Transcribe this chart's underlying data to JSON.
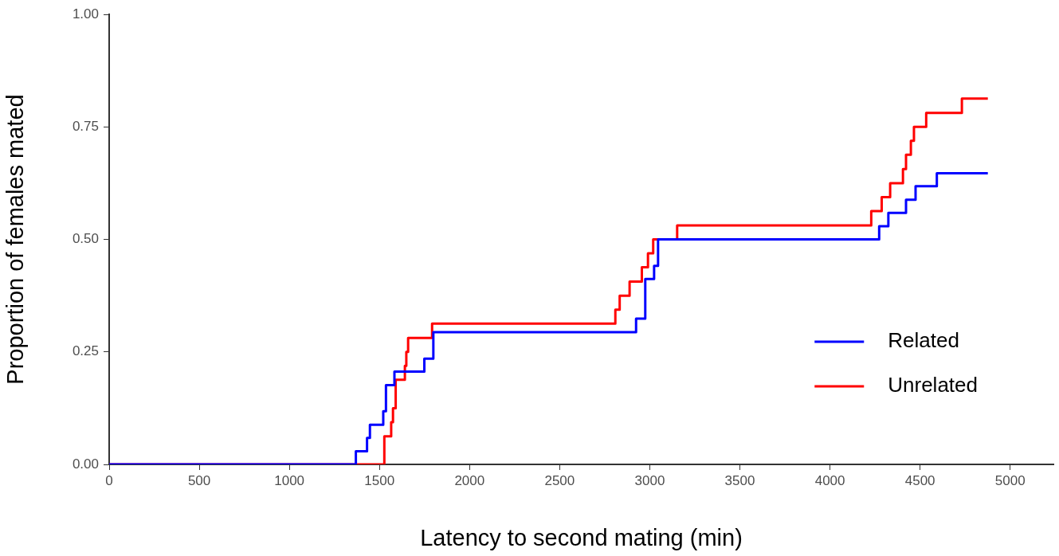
{
  "chart_data": {
    "type": "step",
    "xlabel": "Latency to second mating (min)",
    "ylabel": "Proportion of females mated",
    "xlim": [
      0,
      5240
    ],
    "xticks": [
      0,
      500,
      1000,
      1500,
      2000,
      2500,
      3000,
      3500,
      4000,
      4500,
      5000
    ],
    "ylim": [
      0,
      1
    ],
    "yticks": [
      {
        "value": 0,
        "label": "0.00"
      },
      {
        "value": 0.25,
        "label": "0.25"
      },
      {
        "value": 0.5,
        "label": "0.50"
      },
      {
        "value": 0.75,
        "label": "0.75"
      },
      {
        "value": 1,
        "label": "1.00"
      }
    ],
    "grid": false,
    "legend": "bottom right",
    "marker": "none",
    "line_style": "solid",
    "series": [
      {
        "name": "Related",
        "color": "#0000ff",
        "x": [
          0,
          1369,
          1431,
          1447,
          1521,
          1536,
          1583,
          1749,
          1799,
          2924,
          2975,
          3024,
          3046,
          4273,
          4324,
          4422,
          4475,
          4593,
          4876
        ],
        "values": [
          0,
          0.029,
          0.059,
          0.088,
          0.118,
          0.176,
          0.206,
          0.235,
          0.294,
          0.324,
          0.412,
          0.441,
          0.5,
          0.529,
          0.559,
          0.588,
          0.618,
          0.647,
          0.647
        ]
      },
      {
        "name": "Unrelated",
        "color": "#ff0000",
        "x": [
          0,
          1527,
          1565,
          1575,
          1590,
          1641,
          1649,
          1659,
          1792,
          2809,
          2833,
          2888,
          2956,
          2990,
          3019,
          3152,
          4229,
          4287,
          4334,
          4405,
          4422,
          4449,
          4466,
          4534,
          4732,
          4876
        ],
        "values": [
          0,
          0.0625,
          0.094,
          0.125,
          0.188,
          0.219,
          0.25,
          0.281,
          0.313,
          0.344,
          0.375,
          0.406,
          0.438,
          0.469,
          0.5,
          0.531,
          0.563,
          0.594,
          0.625,
          0.656,
          0.688,
          0.719,
          0.75,
          0.781,
          0.813,
          0.813
        ]
      }
    ]
  }
}
